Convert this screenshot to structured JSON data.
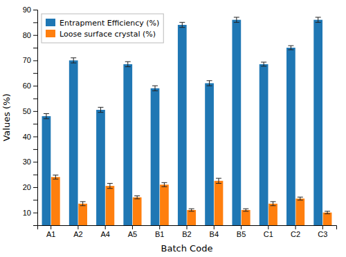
{
  "chart_data": {
    "type": "bar",
    "xlabel": "Batch Code",
    "ylabel": "Values (%)",
    "categories": [
      "A1",
      "A2",
      "A4",
      "A5",
      "B1",
      "B2",
      "B4",
      "B5",
      "C1",
      "C2",
      "C3"
    ],
    "series": [
      {
        "name": "Entrapment Efficiency (%)",
        "values": [
          48,
          70,
          50.5,
          68.5,
          59,
          84,
          61,
          86,
          68.5,
          75,
          86
        ],
        "errors": [
          1.0,
          1.0,
          1.0,
          1.0,
          1.0,
          1.0,
          1.0,
          1.0,
          0.8,
          0.8,
          1.0
        ]
      },
      {
        "name": "Loose surface crystal (%)",
        "values": [
          24,
          13.5,
          20.5,
          16,
          21,
          11,
          22.5,
          11,
          13.5,
          15.5,
          10
        ],
        "errors": [
          0.8,
          0.8,
          1.0,
          0.6,
          0.8,
          0.5,
          1.0,
          0.5,
          0.8,
          0.6,
          0.5
        ]
      }
    ],
    "ylim": [
      5,
      90
    ],
    "yticks": [
      {
        "value": 5,
        "label": ""
      },
      10,
      {
        "value": 15,
        "label": ""
      },
      20,
      {
        "value": 25,
        "label": ""
      },
      30,
      {
        "value": 35,
        "label": ""
      },
      40,
      {
        "value": 45,
        "label": ""
      },
      50,
      {
        "value": 55,
        "label": ""
      },
      60,
      {
        "value": 65,
        "label": ""
      },
      70,
      {
        "value": 75,
        "label": ""
      },
      80,
      {
        "value": 85,
        "label": ""
      },
      90
    ],
    "legend": "upper left",
    "grid": false
  }
}
